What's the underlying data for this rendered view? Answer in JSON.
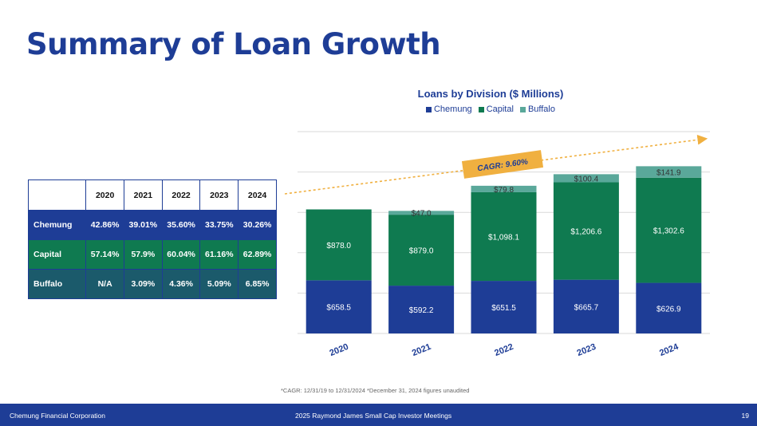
{
  "page": {
    "title": "Summary of Loan Growth",
    "footnote": "*CAGR: 12/31/19 to 12/31/2024   *December 31, 2024 figures unaudited",
    "footer": {
      "company": "Chemung Financial Corporation",
      "event": "2025 Raymond James Small Cap Investor Meetings",
      "page_number": "19"
    }
  },
  "table": {
    "headers": [
      "",
      "2020",
      "2021",
      "2022",
      "2023",
      "2024"
    ],
    "rows": [
      {
        "label": "Chemung",
        "values": [
          "42.86%",
          "39.01%",
          "35.60%",
          "33.75%",
          "30.26%"
        ]
      },
      {
        "label": "Capital",
        "values": [
          "57.14%",
          "57.9%",
          "60.04%",
          "61.16%",
          "62.89%"
        ]
      },
      {
        "label": "Buffalo",
        "values": [
          "N/A",
          "3.09%",
          "4.36%",
          "5.09%",
          "6.85%"
        ]
      }
    ]
  },
  "colors": {
    "brand": "#1e3d96",
    "chemung": "#1e3d96",
    "capital": "#0f7a50",
    "buffalo": "#5aa89a",
    "arrow": "#f0b040"
  },
  "chart_data": {
    "type": "bar",
    "stacked": true,
    "title": "Loans by Division ($ Millions)",
    "categories": [
      "2020",
      "2021",
      "2022",
      "2023",
      "2024"
    ],
    "series": [
      {
        "name": "Chemung",
        "values": [
          658.5,
          592.2,
          651.5,
          665.7,
          626.9
        ],
        "labels": [
          "$658.5",
          "$592.2",
          "$651.5",
          "$665.7",
          "$626.9"
        ]
      },
      {
        "name": "Capital",
        "values": [
          878.0,
          879.0,
          1098.1,
          1206.6,
          1302.6
        ],
        "labels": [
          "$878.0",
          "$879.0",
          "$1,098.1",
          "$1,206.6",
          "$1,302.6"
        ]
      },
      {
        "name": "Buffalo",
        "values": [
          null,
          47.0,
          79.8,
          100.4,
          141.9
        ],
        "labels": [
          "",
          "$47.0",
          "$79.8",
          "$100.4",
          "$141.9"
        ]
      }
    ],
    "ylim": [
      0,
      2500
    ],
    "grid": true,
    "legend": "top",
    "annotation": "CAGR: 9.60%"
  }
}
